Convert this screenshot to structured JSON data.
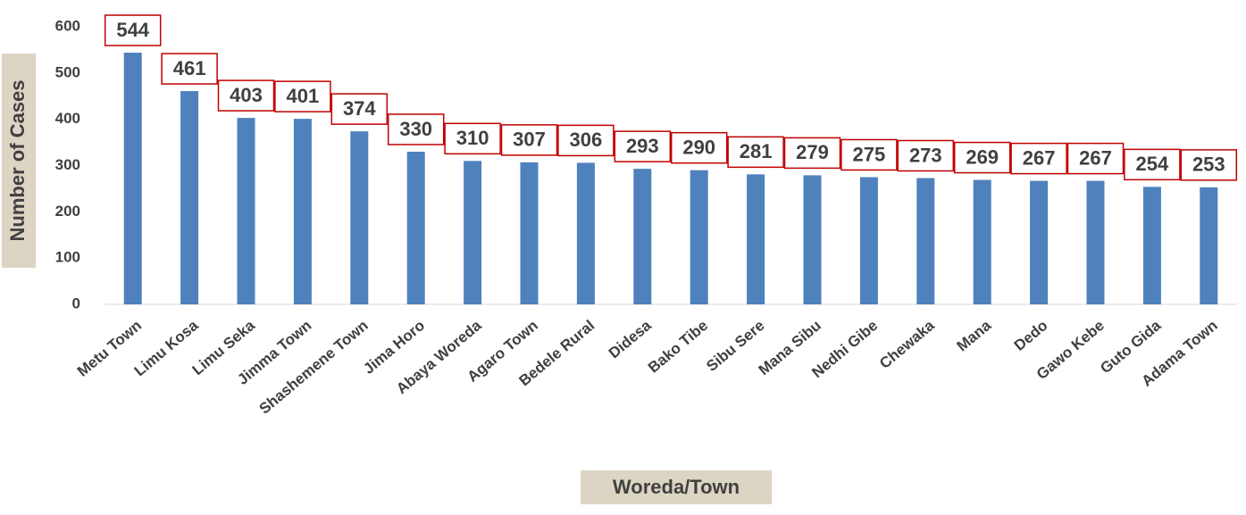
{
  "chart_data": {
    "type": "bar",
    "xlabel": "Woreda/Town",
    "ylabel": "Number of Cases",
    "categories": [
      "Metu Town",
      "Limu Kosa",
      "Limu Seka",
      "Jimma Town",
      "Shashemene  Town",
      "Jima Horo",
      "Abaya Woreda",
      "Agaro Town",
      "Bedele Rural",
      "Didesa",
      "Bako Tibe",
      "Sibu Sere",
      "Mana Sibu",
      "Nedhi Gibe",
      "Chewaka",
      "Mana",
      "Dedo",
      "Gawo Kebe",
      "Guto Gida",
      "Adama Town"
    ],
    "values": [
      544,
      461,
      403,
      401,
      374,
      330,
      310,
      307,
      306,
      293,
      290,
      281,
      279,
      275,
      273,
      269,
      267,
      267,
      254,
      253
    ],
    "color": "#4f81bd",
    "label_border_color": "#c00000",
    "ylim": [
      0,
      600
    ],
    "yticks": [
      0,
      100,
      200,
      300,
      400,
      500,
      600
    ],
    "grid": false
  }
}
